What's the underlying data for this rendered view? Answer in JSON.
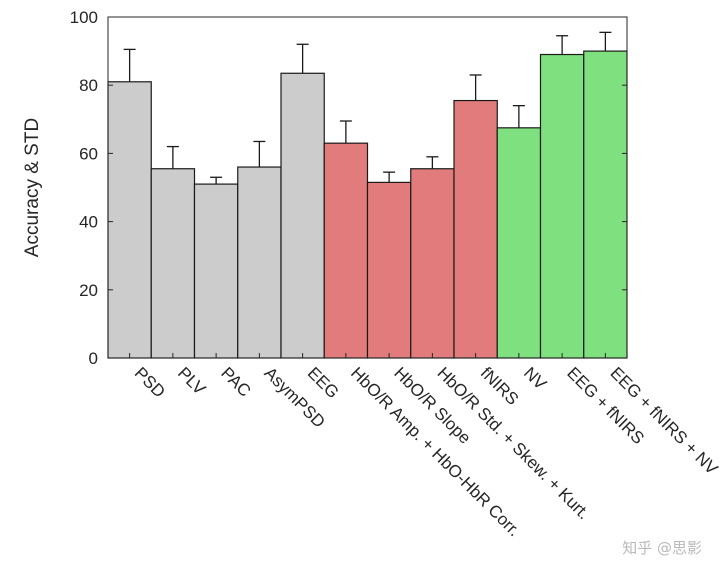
{
  "chart_data": {
    "type": "bar",
    "title": "",
    "xlabel": "",
    "ylabel": "Accuracy & STD",
    "ylim": [
      0,
      100
    ],
    "yticks": [
      0,
      20,
      40,
      60,
      80,
      100
    ],
    "grid": false,
    "legend": "none",
    "categories": [
      "PSD",
      "PLV",
      "PAC",
      "AsymPSD",
      "EEG",
      "HbO/R Amp. + HbO-HbR Corr.",
      "HbO/R Slope",
      "HbO/R Std. + Skew. + Kurt.",
      "fNIRS",
      "NV",
      "EEG + fNIRS",
      "EEG + fNIRS + NV"
    ],
    "values": [
      81,
      55.5,
      51,
      56,
      83.5,
      63,
      51.5,
      55.5,
      75.5,
      67.5,
      89,
      90
    ],
    "std": [
      9.5,
      6.5,
      2,
      7.5,
      8.5,
      6.5,
      3,
      3.5,
      7.5,
      6.5,
      5.5,
      5.5
    ],
    "colors": [
      "#cccccc",
      "#cccccc",
      "#cccccc",
      "#cccccc",
      "#cccccc",
      "#e27c7c",
      "#e27c7c",
      "#e27c7c",
      "#e27c7c",
      "#7ee07e",
      "#7ee07e",
      "#7ee07e"
    ]
  },
  "watermark": "知乎 @思影"
}
